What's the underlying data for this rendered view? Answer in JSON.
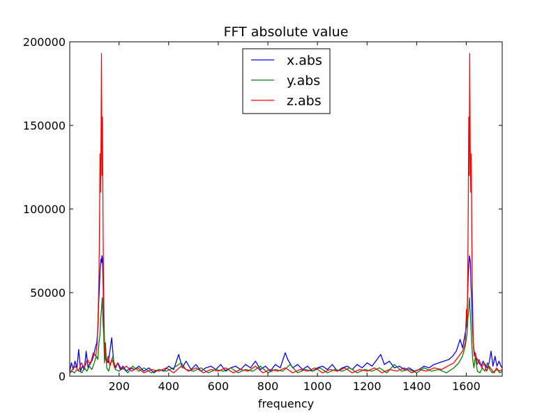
{
  "chart_data": {
    "type": "line",
    "title": "FFT absolute value",
    "xlabel": "frequency",
    "ylabel": "",
    "xlim": [
      1,
      1745
    ],
    "ylim": [
      0,
      200000
    ],
    "xticks": [
      200,
      400,
      600,
      800,
      1000,
      1200,
      1400,
      1600
    ],
    "yticks": [
      0,
      50000,
      100000,
      150000,
      200000
    ],
    "grid": false,
    "legend_position": "upper center",
    "series": [
      {
        "name": "x.abs",
        "color": "#0000ff",
        "x": [
          1,
          8,
          15,
          22,
          30,
          37,
          45,
          52,
          60,
          67,
          75,
          82,
          90,
          97,
          104,
          110,
          115,
          118,
          121,
          124,
          127,
          129,
          131,
          133,
          135,
          137,
          139,
          142,
          146,
          150,
          156,
          163,
          170,
          178,
          186,
          194,
          205,
          215,
          230,
          245,
          262,
          280,
          300,
          320,
          340,
          360,
          380,
          400,
          420,
          440,
          455,
          470,
          490,
          510,
          530,
          550,
          570,
          590,
          610,
          630,
          650,
          670,
          690,
          710,
          730,
          750,
          770,
          790,
          810,
          830,
          850,
          870,
          880,
          900,
          920,
          940,
          960,
          980,
          1000,
          1020,
          1040,
          1060,
          1080,
          1100,
          1120,
          1140,
          1160,
          1180,
          1200,
          1220,
          1240,
          1255,
          1270,
          1290,
          1310,
          1330,
          1350,
          1370,
          1390,
          1410,
          1430,
          1450,
          1470,
          1490,
          1510,
          1530,
          1545,
          1560,
          1575,
          1585,
          1595,
          1601,
          1605,
          1608,
          1611,
          1613,
          1615,
          1617,
          1619,
          1622,
          1625,
          1628,
          1632,
          1637,
          1645,
          1652,
          1660,
          1668,
          1676,
          1684,
          1692,
          1700,
          1708,
          1716,
          1724,
          1732,
          1740,
          1745
        ],
        "y": [
          3000,
          8000,
          4000,
          9000,
          5000,
          16000,
          3000,
          6000,
          4000,
          15000,
          5000,
          8000,
          9000,
          12000,
          17000,
          20000,
          30000,
          45000,
          55000,
          65000,
          70000,
          68000,
          72000,
          70000,
          60000,
          45000,
          25000,
          15000,
          12000,
          10000,
          8000,
          15000,
          23000,
          9000,
          5000,
          8000,
          4000,
          6000,
          3000,
          5000,
          4000,
          6000,
          3000,
          5000,
          2000,
          4000,
          3000,
          6000,
          4000,
          13000,
          5000,
          9000,
          4000,
          7000,
          3000,
          5000,
          6000,
          4000,
          7000,
          3000,
          5000,
          6000,
          4000,
          7000,
          5000,
          9000,
          4000,
          6000,
          3000,
          7000,
          5000,
          14000,
          10000,
          5000,
          7000,
          4000,
          6000,
          3000,
          5000,
          6000,
          4000,
          7000,
          3000,
          5000,
          6000,
          4000,
          7000,
          5000,
          8000,
          6000,
          10000,
          13000,
          7000,
          9000,
          5000,
          6000,
          4000,
          5000,
          3000,
          4000,
          6000,
          5000,
          7000,
          8000,
          9000,
          10000,
          12000,
          15000,
          22000,
          17000,
          25000,
          30000,
          45000,
          60000,
          68000,
          72000,
          70000,
          68000,
          55000,
          45000,
          30000,
          20000,
          15000,
          12000,
          10000,
          8000,
          6000,
          9000,
          7000,
          5000,
          8000,
          15000,
          6000,
          12000,
          6000,
          9000,
          6000,
          5000
        ]
      },
      {
        "name": "y.abs",
        "color": "#008000",
        "x": [
          1,
          10,
          20,
          30,
          40,
          50,
          60,
          70,
          80,
          90,
          100,
          108,
          114,
          119,
          123,
          126,
          129,
          132,
          135,
          138,
          141,
          145,
          150,
          158,
          166,
          175,
          185,
          200,
          215,
          235,
          255,
          280,
          300,
          330,
          360,
          390,
          420,
          450,
          470,
          500,
          530,
          560,
          590,
          620,
          650,
          680,
          710,
          740,
          770,
          800,
          830,
          860,
          890,
          920,
          950,
          980,
          1010,
          1040,
          1070,
          1100,
          1130,
          1160,
          1190,
          1220,
          1250,
          1280,
          1310,
          1340,
          1370,
          1400,
          1430,
          1460,
          1490,
          1520,
          1550,
          1570,
          1585,
          1596,
          1603,
          1607,
          1610,
          1613,
          1616,
          1619,
          1622,
          1626,
          1631,
          1637,
          1645,
          1655,
          1665,
          1675,
          1685,
          1695,
          1705,
          1715,
          1725,
          1735,
          1745
        ],
        "y": [
          2000,
          3000,
          2000,
          4000,
          3000,
          2000,
          5000,
          3000,
          6000,
          4000,
          8000,
          12000,
          10000,
          20000,
          25000,
          35000,
          40000,
          47000,
          33000,
          25000,
          8000,
          20000,
          5000,
          3000,
          8000,
          12000,
          4000,
          3000,
          5000,
          2000,
          6000,
          3000,
          5000,
          2000,
          4000,
          3000,
          5000,
          8000,
          4000,
          3000,
          5000,
          2000,
          4000,
          3000,
          5000,
          2000,
          4000,
          3000,
          6000,
          2000,
          4000,
          3000,
          7000,
          2000,
          4000,
          3000,
          5000,
          2000,
          4000,
          3000,
          5000,
          2000,
          4000,
          3000,
          5000,
          2000,
          7000,
          3000,
          4000,
          2000,
          5000,
          3000,
          4000,
          2000,
          5000,
          8000,
          12000,
          18000,
          25000,
          35000,
          40000,
          47000,
          38000,
          30000,
          20000,
          10000,
          5000,
          12000,
          3000,
          2000,
          5000,
          3000,
          8000,
          4000,
          2000,
          3000,
          4000,
          2000,
          3000
        ]
      },
      {
        "name": "z.abs",
        "color": "#ff0000",
        "x": [
          1,
          12,
          24,
          36,
          48,
          60,
          72,
          84,
          96,
          106,
          112,
          116,
          119,
          121,
          123,
          125,
          127,
          129,
          131,
          133,
          135,
          137,
          139,
          141,
          143,
          146,
          150,
          156,
          163,
          172,
          182,
          195,
          210,
          230,
          250,
          275,
          300,
          330,
          360,
          390,
          420,
          450,
          480,
          510,
          540,
          570,
          600,
          630,
          660,
          690,
          720,
          750,
          780,
          810,
          840,
          870,
          900,
          930,
          960,
          990,
          1020,
          1050,
          1080,
          1110,
          1140,
          1170,
          1200,
          1230,
          1260,
          1290,
          1320,
          1350,
          1380,
          1410,
          1440,
          1470,
          1500,
          1525,
          1550,
          1570,
          1585,
          1596,
          1601,
          1604,
          1606,
          1608,
          1610,
          1612,
          1614,
          1616,
          1618,
          1620,
          1622,
          1624,
          1626,
          1628,
          1632,
          1637,
          1644,
          1652,
          1662,
          1672,
          1682,
          1692,
          1702,
          1712,
          1722,
          1732,
          1745
        ],
        "y": [
          2000,
          4000,
          6000,
          3000,
          8000,
          5000,
          10000,
          7000,
          14000,
          12000,
          20000,
          40000,
          60000,
          90000,
          133000,
          110000,
          138000,
          193000,
          120000,
          155000,
          100000,
          60000,
          35000,
          20000,
          15000,
          10000,
          8000,
          12000,
          6000,
          10000,
          5000,
          8000,
          4000,
          6000,
          3000,
          5000,
          2000,
          4000,
          3000,
          5000,
          2000,
          6000,
          3000,
          5000,
          2000,
          4000,
          3000,
          5000,
          2000,
          4000,
          3000,
          6000,
          2000,
          4000,
          3000,
          5000,
          2000,
          4000,
          3000,
          5000,
          2000,
          4000,
          3000,
          5000,
          2000,
          4000,
          3000,
          5000,
          2000,
          4000,
          3000,
          5000,
          2000,
          4000,
          3000,
          5000,
          4000,
          6000,
          8000,
          12000,
          15000,
          20000,
          40000,
          35000,
          60000,
          100000,
          155000,
          120000,
          193000,
          138000,
          110000,
          133000,
          90000,
          60000,
          40000,
          20000,
          12000,
          14000,
          7000,
          10000,
          5000,
          8000,
          3000,
          6000,
          4000,
          2000,
          5000,
          3000,
          4000
        ]
      }
    ]
  }
}
